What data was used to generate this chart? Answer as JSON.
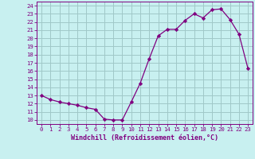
{
  "x": [
    0,
    1,
    2,
    3,
    4,
    5,
    6,
    7,
    8,
    9,
    10,
    11,
    12,
    13,
    14,
    15,
    16,
    17,
    18,
    19,
    20,
    21,
    22,
    23
  ],
  "y": [
    13.0,
    12.5,
    12.2,
    12.0,
    11.8,
    11.5,
    11.3,
    10.1,
    10.0,
    10.0,
    12.2,
    14.5,
    17.5,
    20.3,
    21.1,
    21.1,
    22.2,
    23.0,
    22.5,
    23.5,
    23.6,
    22.3,
    20.5,
    16.3
  ],
  "line_color": "#800080",
  "marker": "D",
  "marker_size": 2.2,
  "bg_color": "#c8f0f0",
  "grid_color": "#a0c8c8",
  "xlabel": "Windchill (Refroidissement éolien,°C)",
  "ylabel_ticks": [
    10,
    11,
    12,
    13,
    14,
    15,
    16,
    17,
    18,
    19,
    20,
    21,
    22,
    23,
    24
  ],
  "xlim": [
    -0.5,
    23.5
  ],
  "ylim": [
    9.5,
    24.5
  ],
  "xticks": [
    0,
    1,
    2,
    3,
    4,
    5,
    6,
    7,
    8,
    9,
    10,
    11,
    12,
    13,
    14,
    15,
    16,
    17,
    18,
    19,
    20,
    21,
    22,
    23
  ],
  "tick_color": "#800080",
  "label_color": "#800080",
  "tick_fontsize": 5.2,
  "xlabel_fontsize": 6.0,
  "linewidth": 0.9
}
